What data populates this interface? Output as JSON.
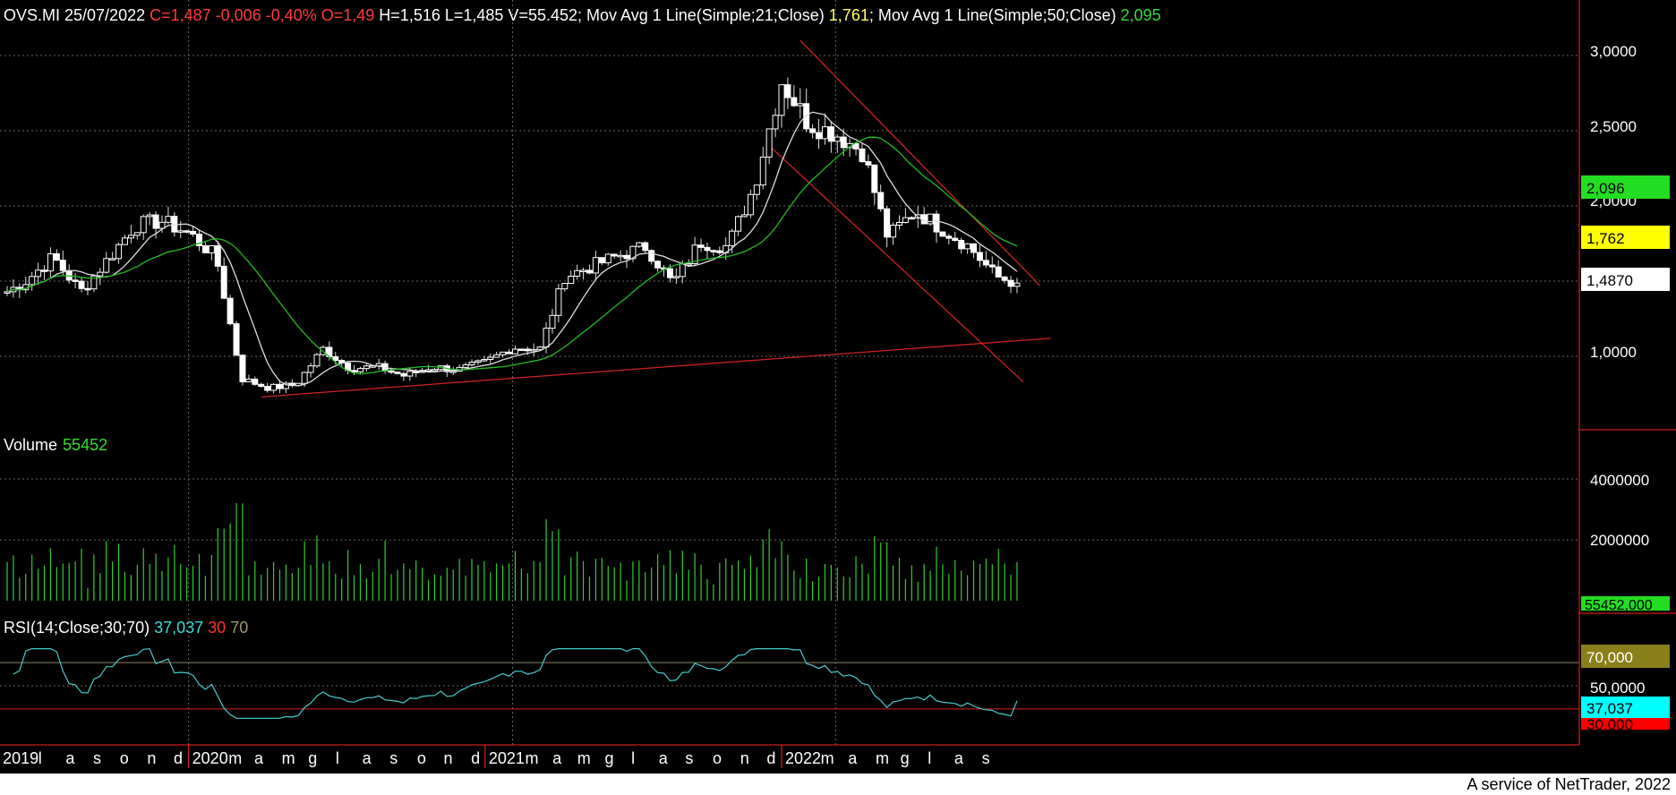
{
  "header": {
    "parts": [
      {
        "text": "OVS.MI 25/07/2022 ",
        "color": "#ffffff"
      },
      {
        "text": "C=1,487 -0,006 -0,40% O=1,49",
        "color": "#ff3b3b"
      },
      {
        "text": " H=1,516 L=1,485 V=55.452; Mov Avg 1 Line(Simple;21;Close) ",
        "color": "#ffffff"
      },
      {
        "text": "1,761",
        "color": "#ffff66"
      },
      {
        "text": "; Mov Avg 1 Line(Simple;50;Close) ",
        "color": "#ffffff"
      },
      {
        "text": "2,095",
        "color": "#33dd33"
      }
    ]
  },
  "price_axis": {
    "ticks": [
      "3,0000",
      "2,5000",
      "2,0000",
      "1,0000"
    ],
    "tick_values": [
      3.0,
      2.5,
      2.0,
      1.0
    ]
  },
  "price_badges": [
    {
      "label": "2,096",
      "value": 2.096,
      "bg": "#22dd22",
      "fg": "#000000"
    },
    {
      "label": "1,762",
      "value": 1.762,
      "bg": "#ffff00",
      "fg": "#000000"
    },
    {
      "label": "1,4870",
      "value": 1.487,
      "bg": "#ffffff",
      "fg": "#000000"
    }
  ],
  "volume_panel": {
    "label": "Volume",
    "value": "55452",
    "ticks": [
      "4000000",
      "2000000"
    ],
    "tick_values": [
      4000000,
      2000000
    ],
    "badge_label": "55452,000",
    "badge_values": [
      "55452,000"
    ]
  },
  "rsi_panel": {
    "label_parts": [
      {
        "text": "RSI(14;Close;30;70) ",
        "color": "#ffffff"
      },
      {
        "text": "37,037",
        "color": "#33dddd"
      },
      {
        "text": " 30",
        "color": "#ff3333"
      },
      {
        "text": " 70",
        "color": "#999966"
      }
    ],
    "ticks": [
      "50,0000"
    ],
    "badges": [
      {
        "label": "70,000",
        "value": 70,
        "bg": "#8a7f1a",
        "fg": "#ffffff"
      },
      {
        "label": "37,037",
        "value": 37.037,
        "bg": "#00ffff",
        "fg": "#000000"
      },
      {
        "label": "30,000",
        "value": 30,
        "bg": "#ff0000",
        "fg": "#000000"
      }
    ]
  },
  "time_axis": {
    "labels": [
      "2019",
      "l",
      "a",
      "s",
      "o",
      "n",
      "d",
      "2020",
      "m",
      "a",
      "m",
      "g",
      "l",
      "a",
      "s",
      "o",
      "n",
      "d",
      "2021",
      "m",
      "a",
      "m",
      "g",
      "l",
      "a",
      "s",
      "o",
      "n",
      "d",
      "2022",
      "m",
      "a",
      "m",
      "g",
      "l",
      "a",
      "s"
    ]
  },
  "footer": {
    "text": "A service of NetTrader, 2022"
  },
  "colors": {
    "sma21": "#dddddd",
    "sma50": "#22bb22",
    "trend": "#cc2222",
    "volume": "#33cc33",
    "rsi": "#44cccc",
    "grid": "#666666"
  },
  "chart_data": {
    "type": "candlestick",
    "title": "OVS.MI",
    "period": "weekly",
    "x_range": [
      "2019-06",
      "2022-08"
    ],
    "ylim": [
      0.5,
      3.3
    ],
    "series": [
      {
        "name": "Close",
        "points": [
          [
            "2019-06-10",
            1.43
          ],
          [
            "2019-07-01",
            1.5
          ],
          [
            "2019-08-01",
            1.66
          ],
          [
            "2019-09-01",
            1.43
          ],
          [
            "2019-10-01",
            1.64
          ],
          [
            "2019-11-01",
            1.87
          ],
          [
            "2019-12-01",
            1.9
          ],
          [
            "2020-01-01",
            1.82
          ],
          [
            "2020-02-01",
            1.66
          ],
          [
            "2020-03-01",
            0.85
          ],
          [
            "2020-04-01",
            0.79
          ],
          [
            "2020-05-01",
            0.81
          ],
          [
            "2020-06-01",
            1.05
          ],
          [
            "2020-07-01",
            0.92
          ],
          [
            "2020-08-01",
            0.93
          ],
          [
            "2020-09-01",
            0.87
          ],
          [
            "2020-10-01",
            0.93
          ],
          [
            "2020-11-01",
            0.91
          ],
          [
            "2020-12-01",
            0.96
          ],
          [
            "2021-01-01",
            1.06
          ],
          [
            "2021-02-01",
            1.05
          ],
          [
            "2021-03-01",
            1.53
          ],
          [
            "2021-04-01",
            1.6
          ],
          [
            "2021-05-01",
            1.67
          ],
          [
            "2021-06-01",
            1.73
          ],
          [
            "2021-07-01",
            1.48
          ],
          [
            "2021-08-01",
            1.76
          ],
          [
            "2021-09-01",
            1.73
          ],
          [
            "2021-10-01",
            2.13
          ],
          [
            "2021-11-01",
            2.83
          ],
          [
            "2021-12-01",
            2.55
          ],
          [
            "2022-01-01",
            2.48
          ],
          [
            "2022-02-01",
            2.36
          ],
          [
            "2022-03-01",
            1.79
          ],
          [
            "2022-04-01",
            1.97
          ],
          [
            "2022-05-01",
            1.85
          ],
          [
            "2022-06-01",
            1.73
          ],
          [
            "2022-07-01",
            1.53
          ],
          [
            "2022-07-25",
            1.487
          ]
        ]
      },
      {
        "name": "Mov Avg 1 Line(Simple;21;Close)",
        "last": 1.761
      },
      {
        "name": "Mov Avg 1 Line(Simple;50;Close)",
        "last": 2.095
      },
      {
        "name": "Volume",
        "last": 55452
      },
      {
        "name": "RSI(14;Close;30;70)",
        "last": 37.037,
        "bands": [
          30,
          70
        ]
      }
    ],
    "trendlines": [
      {
        "from": [
          "2020-03-23",
          0.73
        ],
        "to": [
          "2022-09-01",
          1.12
        ]
      },
      {
        "from": [
          "2021-11-22",
          3.1
        ],
        "to": [
          "2022-08-20",
          1.47
        ]
      },
      {
        "from": [
          "2021-10-18",
          2.4
        ],
        "to": [
          "2022-08-01",
          0.83
        ]
      }
    ]
  }
}
